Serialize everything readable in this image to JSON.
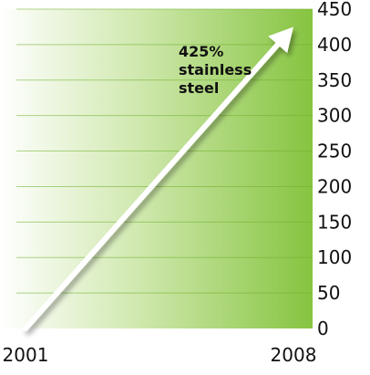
{
  "chart_data": {
    "type": "line",
    "x": [
      "2001",
      "2008"
    ],
    "series": [
      {
        "values": [
          0,
          425
        ]
      }
    ],
    "x_tick_labels": [
      "2001",
      "2008"
    ],
    "y_ticks": [
      0,
      50,
      100,
      150,
      200,
      250,
      300,
      350,
      400,
      450
    ],
    "ylim": [
      0,
      450
    ],
    "y_axis_position": "right",
    "grid": true,
    "annotation": {
      "lines": [
        "425%",
        "stainless",
        "steel"
      ]
    },
    "colors": {
      "gradient_start": "#ffffff",
      "gradient_end": "#86c440",
      "gridline": "#6fae2c",
      "arrow": "#ffffff"
    }
  }
}
